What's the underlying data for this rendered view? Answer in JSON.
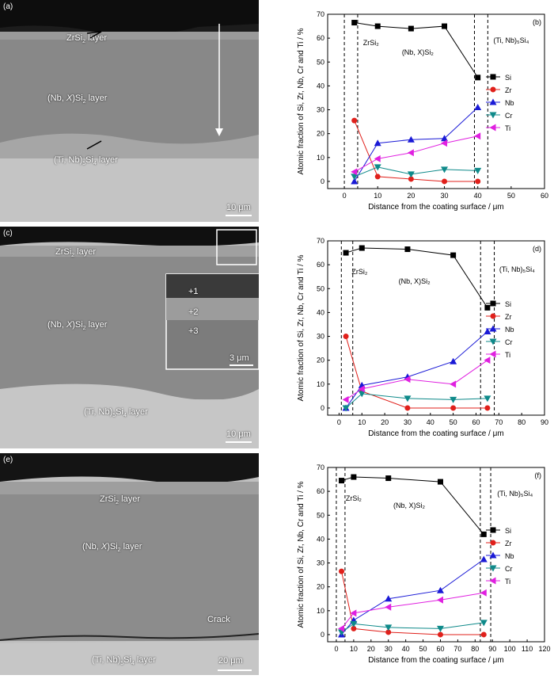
{
  "panels_left": [
    {
      "letter": "(a)",
      "labels": [
        "ZrSi₂ layer",
        "(Nb, X)Si₂ layer",
        "(Ti, Nb)₅Si₄ layer"
      ],
      "scalebar": "10 μm"
    },
    {
      "letter": "(c)",
      "labels": [
        "ZrSi₂ layer",
        "(Nb, X)Si₂ layer",
        "(Ti, Nb)₅Si₄ layer"
      ],
      "scalebar": "10 μm",
      "inset_points": [
        "+1",
        "+2",
        "+3"
      ],
      "inset_scalebar": "3 μm"
    },
    {
      "letter": "(e)",
      "labels": [
        "ZrSi₂ layer",
        "(Nb, X)Si₂ layer",
        "(Ti, Nb)₅Si₄ layer",
        "Crack"
      ],
      "scalebar": "20 μm"
    }
  ],
  "chart_data": [
    {
      "type": "line",
      "panel": "(b)",
      "xlabel": "Distance from the coating surface / μm",
      "ylabel": "Atomic fraction of Si, Zr, Nb, Cr and Ti / %",
      "xlim": [
        -5,
        60
      ],
      "ylim": [
        -3,
        70
      ],
      "xticks": [
        0,
        10,
        20,
        30,
        40,
        50,
        60
      ],
      "yticks": [
        0,
        10,
        20,
        30,
        40,
        50,
        60,
        70
      ],
      "dashed_x": [
        0,
        4,
        39,
        43
      ],
      "region_labels": [
        {
          "text": "ZrSi₂",
          "x": 8,
          "y": 57
        },
        {
          "text": "(Nb, X)Si₂",
          "x": 22,
          "y": 53
        },
        {
          "text": "(Ti, Nb)₅Si₄",
          "x": 50,
          "y": 58
        }
      ],
      "series": [
        {
          "name": "Si",
          "color": "#000000",
          "marker": "square",
          "x": [
            3,
            10,
            20,
            30,
            40
          ],
          "y": [
            66.5,
            65,
            64,
            65,
            43.5
          ]
        },
        {
          "name": "Zr",
          "color": "#e0201b",
          "marker": "circle",
          "x": [
            3,
            10,
            20,
            30,
            40
          ],
          "y": [
            25.5,
            2,
            1,
            0,
            0
          ]
        },
        {
          "name": "Nb",
          "color": "#1a1ad6",
          "marker": "triangle-up",
          "x": [
            3,
            10,
            20,
            30,
            40
          ],
          "y": [
            0,
            16,
            17.5,
            18,
            31
          ]
        },
        {
          "name": "Cr",
          "color": "#0f8a8a",
          "marker": "triangle-down",
          "x": [
            3,
            10,
            20,
            30,
            40
          ],
          "y": [
            2,
            6,
            3,
            5,
            4.5
          ]
        },
        {
          "name": "Ti",
          "color": "#e020e0",
          "marker": "triangle-left",
          "x": [
            3,
            10,
            20,
            30,
            40
          ],
          "y": [
            4,
            9.5,
            12,
            16,
            19
          ]
        }
      ]
    },
    {
      "type": "line",
      "panel": "(d)",
      "xlabel": "Distance from the coating surface / μm",
      "ylabel": "Atomic fraction of Si, Zr, Nb, Cr and Ti / %",
      "xlim": [
        -5,
        90
      ],
      "ylim": [
        -3,
        70
      ],
      "xticks": [
        0,
        10,
        20,
        30,
        40,
        50,
        60,
        70,
        80,
        90
      ],
      "yticks": [
        0,
        10,
        20,
        30,
        40,
        50,
        60,
        70
      ],
      "dashed_x": [
        1,
        6,
        62,
        68
      ],
      "region_labels": [
        {
          "text": "ZrSi₂",
          "x": 9,
          "y": 56
        },
        {
          "text": "(Nb, X)Si₂",
          "x": 33,
          "y": 52
        },
        {
          "text": "(Ti, Nb)₅Si₄",
          "x": 78,
          "y": 57
        }
      ],
      "series": [
        {
          "name": "Si",
          "color": "#000000",
          "marker": "square",
          "x": [
            3,
            10,
            30,
            50,
            65
          ],
          "y": [
            65,
            67,
            66.5,
            64,
            42
          ]
        },
        {
          "name": "Zr",
          "color": "#e0201b",
          "marker": "circle",
          "x": [
            3,
            10,
            30,
            50,
            65
          ],
          "y": [
            30,
            7,
            0,
            0,
            0
          ]
        },
        {
          "name": "Nb",
          "color": "#1a1ad6",
          "marker": "triangle-up",
          "x": [
            3,
            10,
            30,
            50,
            65
          ],
          "y": [
            0,
            9.5,
            13,
            19.5,
            32
          ]
        },
        {
          "name": "Cr",
          "color": "#0f8a8a",
          "marker": "triangle-down",
          "x": [
            3,
            10,
            30,
            50,
            65
          ],
          "y": [
            0,
            6,
            4,
            3.5,
            4
          ]
        },
        {
          "name": "Ti",
          "color": "#e020e0",
          "marker": "triangle-left",
          "x": [
            3,
            10,
            30,
            50,
            65
          ],
          "y": [
            3.5,
            8,
            12,
            10,
            20
          ]
        }
      ]
    },
    {
      "type": "line",
      "panel": "(f)",
      "xlabel": "Distance from the coating surface / μm",
      "ylabel": "Atomic fraction of Si, Zr, Nb, Cr and Ti / %",
      "xlim": [
        -5,
        120
      ],
      "ylim": [
        -3,
        70
      ],
      "xticks": [
        0,
        10,
        20,
        30,
        40,
        50,
        60,
        70,
        80,
        90,
        100,
        110,
        120
      ],
      "yticks": [
        0,
        10,
        20,
        30,
        40,
        50,
        60,
        70
      ],
      "dashed_x": [
        0,
        5,
        83,
        89
      ],
      "region_labels": [
        {
          "text": "ZrSi₂",
          "x": 10,
          "y": 56
        },
        {
          "text": "(Nb, X)Si₂",
          "x": 42,
          "y": 53
        },
        {
          "text": "(Ti, Nb)₅Si₄",
          "x": 103,
          "y": 58
        }
      ],
      "series": [
        {
          "name": "Si",
          "color": "#000000",
          "marker": "square",
          "x": [
            3,
            10,
            30,
            60,
            85
          ],
          "y": [
            64.5,
            66,
            65.5,
            64,
            42
          ]
        },
        {
          "name": "Zr",
          "color": "#e0201b",
          "marker": "circle",
          "x": [
            3,
            10,
            30,
            60,
            85
          ],
          "y": [
            26.5,
            2.5,
            1,
            0,
            0
          ]
        },
        {
          "name": "Nb",
          "color": "#1a1ad6",
          "marker": "triangle-up",
          "x": [
            3,
            10,
            30,
            60,
            85
          ],
          "y": [
            0,
            6,
            15,
            18.5,
            31.5
          ]
        },
        {
          "name": "Cr",
          "color": "#0f8a8a",
          "marker": "triangle-down",
          "x": [
            3,
            10,
            30,
            60,
            85
          ],
          "y": [
            1,
            4.5,
            3,
            2.5,
            5
          ]
        },
        {
          "name": "Ti",
          "color": "#e020e0",
          "marker": "triangle-left",
          "x": [
            3,
            10,
            30,
            60,
            85
          ],
          "y": [
            2.5,
            9,
            11.5,
            14.5,
            17.5
          ]
        }
      ]
    }
  ]
}
